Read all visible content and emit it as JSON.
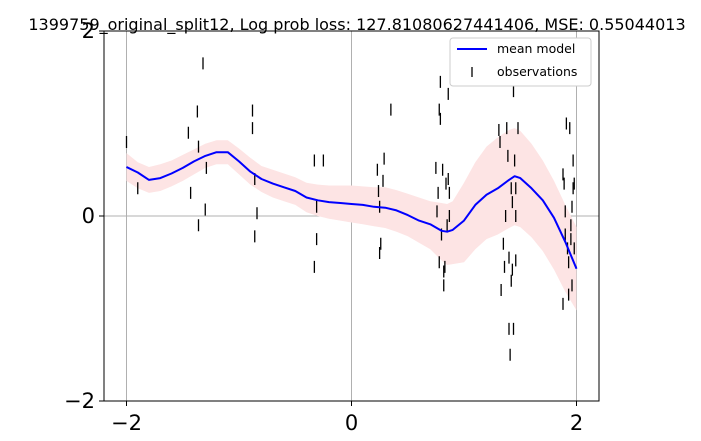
{
  "chart_data": {
    "type": "line",
    "title": "1399759_original_split12, Log prob loss: 127.81080627441406, MSE: 0.55044013",
    "xlim": [
      -2.2,
      2.2
    ],
    "ylim": [
      -2,
      2
    ],
    "x_ticks": [
      -2,
      0,
      2
    ],
    "x_tick_labels": [
      "−2",
      "0",
      "2"
    ],
    "y_ticks": [
      -2,
      0,
      2
    ],
    "y_tick_labels": [
      "−2",
      "0",
      "2"
    ],
    "grid": true,
    "legend_position": "top-right",
    "colors": {
      "mean": "#0000ff",
      "band": "#fde4e4",
      "observations": "#000000",
      "grid": "#b0b0b0"
    },
    "series": [
      {
        "name": "mean model",
        "kind": "line",
        "x": [
          -2.0,
          -1.9,
          -1.8,
          -1.7,
          -1.6,
          -1.5,
          -1.4,
          -1.3,
          -1.2,
          -1.1,
          -1.0,
          -0.9,
          -0.8,
          -0.7,
          -0.6,
          -0.5,
          -0.4,
          -0.3,
          -0.2,
          -0.1,
          0.0,
          0.1,
          0.2,
          0.3,
          0.4,
          0.5,
          0.6,
          0.7,
          0.8,
          0.85,
          0.9,
          1.0,
          1.1,
          1.2,
          1.3,
          1.4,
          1.45,
          1.5,
          1.6,
          1.7,
          1.8,
          1.9,
          2.0
        ],
        "y": [
          0.53,
          0.47,
          0.39,
          0.41,
          0.46,
          0.52,
          0.59,
          0.65,
          0.69,
          0.69,
          0.59,
          0.48,
          0.4,
          0.35,
          0.31,
          0.27,
          0.2,
          0.17,
          0.15,
          0.14,
          0.13,
          0.12,
          0.1,
          0.09,
          0.06,
          0.01,
          -0.05,
          -0.09,
          -0.16,
          -0.17,
          -0.15,
          -0.05,
          0.12,
          0.23,
          0.3,
          0.39,
          0.43,
          0.41,
          0.3,
          0.17,
          -0.02,
          -0.28,
          -0.57
        ]
      },
      {
        "name": "",
        "kind": "band",
        "x": [
          -2.0,
          -1.9,
          -1.8,
          -1.7,
          -1.6,
          -1.5,
          -1.4,
          -1.3,
          -1.2,
          -1.1,
          -1.0,
          -0.9,
          -0.8,
          -0.7,
          -0.6,
          -0.5,
          -0.4,
          -0.3,
          -0.2,
          -0.1,
          0.0,
          0.1,
          0.2,
          0.3,
          0.4,
          0.5,
          0.6,
          0.7,
          0.8,
          0.85,
          0.9,
          1.0,
          1.1,
          1.2,
          1.3,
          1.4,
          1.45,
          1.5,
          1.6,
          1.7,
          1.8,
          1.9,
          2.0
        ],
        "upper": [
          0.68,
          0.58,
          0.53,
          0.56,
          0.6,
          0.66,
          0.72,
          0.78,
          0.82,
          0.82,
          0.73,
          0.63,
          0.54,
          0.5,
          0.46,
          0.42,
          0.36,
          0.34,
          0.33,
          0.33,
          0.33,
          0.32,
          0.31,
          0.31,
          0.28,
          0.24,
          0.2,
          0.16,
          0.14,
          0.13,
          0.16,
          0.36,
          0.58,
          0.75,
          0.85,
          0.93,
          0.95,
          0.92,
          0.78,
          0.6,
          0.38,
          0.12,
          -0.12
        ],
        "lower": [
          0.38,
          0.3,
          0.25,
          0.27,
          0.32,
          0.38,
          0.45,
          0.52,
          0.56,
          0.56,
          0.45,
          0.34,
          0.26,
          0.2,
          0.16,
          0.12,
          0.04,
          0.0,
          -0.03,
          -0.05,
          -0.07,
          -0.09,
          -0.11,
          -0.13,
          -0.17,
          -0.22,
          -0.29,
          -0.36,
          -0.48,
          -0.53,
          -0.52,
          -0.5,
          -0.36,
          -0.25,
          -0.2,
          -0.13,
          -0.1,
          -0.12,
          -0.23,
          -0.38,
          -0.58,
          -0.82,
          -1.02
        ]
      },
      {
        "name": "observations",
        "kind": "scatter",
        "marker": "|",
        "points": [
          [
            -2.0,
            0.8
          ],
          [
            -1.9,
            0.3
          ],
          [
            -1.45,
            0.9
          ],
          [
            -1.43,
            0.25
          ],
          [
            -1.37,
            1.13
          ],
          [
            -1.36,
            0.75
          ],
          [
            -1.36,
            -0.1
          ],
          [
            -1.32,
            1.65
          ],
          [
            -1.3,
            0.07
          ],
          [
            -1.29,
            0.52
          ],
          [
            -0.88,
            1.14
          ],
          [
            -0.88,
            0.95
          ],
          [
            -0.86,
            0.4
          ],
          [
            -0.86,
            -0.22
          ],
          [
            -0.84,
            0.03
          ],
          [
            -0.33,
            0.6
          ],
          [
            -0.33,
            -0.55
          ],
          [
            -0.31,
            0.1
          ],
          [
            -0.31,
            -0.25
          ],
          [
            -0.25,
            0.6
          ],
          [
            0.23,
            0.5
          ],
          [
            0.24,
            0.27
          ],
          [
            0.25,
            0.1
          ],
          [
            0.25,
            -0.4
          ],
          [
            0.26,
            -0.3
          ],
          [
            0.28,
            0.38
          ],
          [
            0.29,
            0.62
          ],
          [
            0.35,
            1.15
          ],
          [
            0.75,
            0.52
          ],
          [
            0.76,
            0.05
          ],
          [
            0.77,
            0.25
          ],
          [
            0.78,
            -0.5
          ],
          [
            0.78,
            1.15
          ],
          [
            0.79,
            1.05
          ],
          [
            0.79,
            1.45
          ],
          [
            0.8,
            -0.2
          ],
          [
            0.81,
            0.5
          ],
          [
            0.82,
            -0.6
          ],
          [
            0.82,
            -0.75
          ],
          [
            0.83,
            -0.55
          ],
          [
            0.84,
            0.35
          ],
          [
            0.85,
            -0.1
          ],
          [
            0.86,
            0.4
          ],
          [
            0.86,
            1.32
          ],
          [
            0.87,
            0.25
          ],
          [
            0.87,
            0.0
          ],
          [
            1.31,
            0.93
          ],
          [
            1.32,
            0.8
          ],
          [
            1.33,
            -0.8
          ],
          [
            1.35,
            -0.3
          ],
          [
            1.36,
            -0.55
          ],
          [
            1.37,
            0.0
          ],
          [
            1.38,
            0.95
          ],
          [
            1.39,
            0.65
          ],
          [
            1.4,
            -0.45
          ],
          [
            1.4,
            -1.22
          ],
          [
            1.41,
            -1.5
          ],
          [
            1.42,
            0.3
          ],
          [
            1.42,
            -0.7
          ],
          [
            1.43,
            0.15
          ],
          [
            1.43,
            -0.58
          ],
          [
            1.44,
            -1.22
          ],
          [
            1.44,
            1.35
          ],
          [
            1.45,
            0.6
          ],
          [
            1.46,
            0.3
          ],
          [
            1.46,
            0.0
          ],
          [
            1.46,
            -0.48
          ],
          [
            1.48,
            0.95
          ],
          [
            1.88,
            0.45
          ],
          [
            1.88,
            -0.95
          ],
          [
            1.89,
            0.35
          ],
          [
            1.9,
            0.05
          ],
          [
            1.9,
            -0.2
          ],
          [
            1.91,
            1.0
          ],
          [
            1.92,
            -0.35
          ],
          [
            1.93,
            -0.5
          ],
          [
            1.93,
            -0.85
          ],
          [
            1.94,
            0.95
          ],
          [
            1.95,
            -0.1
          ],
          [
            1.95,
            -0.25
          ],
          [
            1.96,
            0.1
          ],
          [
            1.96,
            -0.75
          ],
          [
            1.97,
            0.6
          ],
          [
            1.97,
            0.3
          ],
          [
            1.98,
            0.35
          ],
          [
            1.98,
            -0.35
          ]
        ]
      }
    ]
  }
}
